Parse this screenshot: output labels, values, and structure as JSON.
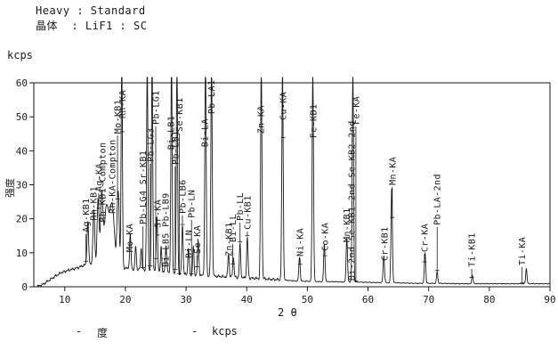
{
  "header": {
    "line1": "Heavy : Standard",
    "line2": "晶体  : LiF1 : SC"
  },
  "y_axis_unit": "kcps",
  "y_axis_label": "强度",
  "x_axis_label": "2 θ",
  "footer_legend": {
    "items": [
      {
        "marker": "-",
        "label": "度"
      },
      {
        "marker": "-",
        "label": "kcps"
      }
    ]
  },
  "colors": {
    "line": "#1a1a1a",
    "background": "#ffffff"
  },
  "chart_data": {
    "type": "line",
    "title": "Heavy : Standard / 晶体 : LiF1 : SC",
    "xlabel": "2 θ (度)",
    "ylabel": "强度 (kcps)",
    "xlim": [
      4.9,
      90
    ],
    "ylim": [
      0,
      60
    ],
    "x_ticks": [
      10,
      20,
      30,
      40,
      50,
      60,
      70,
      80,
      90
    ],
    "y_ticks": [
      0,
      10,
      20,
      30,
      40,
      50,
      60
    ],
    "grid": false,
    "clip_level": 61.6,
    "baseline": [
      [
        5.4,
        0
      ],
      [
        6.5,
        0.8
      ],
      [
        7.5,
        2.0
      ],
      [
        8.5,
        3.2
      ],
      [
        9.5,
        4.2
      ],
      [
        10.5,
        4.8
      ],
      [
        12,
        5.5
      ],
      [
        13,
        6.2
      ],
      [
        14,
        6.8
      ],
      [
        16,
        6.8
      ],
      [
        18,
        6.2
      ],
      [
        20,
        5.5
      ],
      [
        22,
        5.0
      ],
      [
        24,
        4.8
      ],
      [
        26,
        4.3
      ],
      [
        28,
        4.0
      ],
      [
        30,
        3.6
      ],
      [
        32,
        3.4
      ],
      [
        34,
        3.2
      ],
      [
        36,
        3.0
      ],
      [
        38,
        2.8
      ],
      [
        40,
        2.6
      ],
      [
        42,
        2.4
      ],
      [
        44,
        2.2
      ],
      [
        46,
        2.0
      ],
      [
        48,
        1.7
      ],
      [
        50,
        1.6
      ],
      [
        52,
        1.5
      ],
      [
        54,
        1.5
      ],
      [
        56,
        1.4
      ],
      [
        58,
        1.4
      ],
      [
        60,
        1.3
      ],
      [
        62,
        1.2
      ],
      [
        64,
        1.2
      ],
      [
        66,
        1.1
      ],
      [
        68,
        1.0
      ],
      [
        70,
        1.0
      ],
      [
        72,
        1.0
      ],
      [
        75,
        0.9
      ],
      [
        80,
        0.9
      ],
      [
        85,
        0.9
      ],
      [
        90,
        0.9
      ]
    ],
    "peaks": [
      [
        13.8,
        12.5,
        0.18
      ],
      [
        14.8,
        16,
        0.2
      ],
      [
        15.5,
        19,
        0.22
      ],
      [
        16.1,
        20,
        0.28
      ],
      [
        16.9,
        17,
        0.5
      ],
      [
        17.8,
        18,
        0.5
      ],
      [
        18.8,
        22,
        0.25
      ],
      [
        19.4,
        61.6,
        0.15
      ],
      [
        20.8,
        10,
        0.16
      ],
      [
        21.7,
        7,
        0.15
      ],
      [
        22.6,
        6.5,
        0.15
      ],
      [
        23.6,
        61.6,
        0.15
      ],
      [
        24.4,
        61.6,
        0.15
      ],
      [
        25.2,
        16,
        0.16
      ],
      [
        25.9,
        7.5,
        0.14
      ],
      [
        26.7,
        8,
        0.16
      ],
      [
        27.6,
        61.6,
        0.15
      ],
      [
        28.5,
        61.6,
        0.15
      ],
      [
        29.4,
        14.5,
        0.16
      ],
      [
        30.4,
        8,
        0.15
      ],
      [
        31.2,
        8.5,
        0.15
      ],
      [
        32.0,
        10,
        0.16
      ],
      [
        33.2,
        61.6,
        0.16
      ],
      [
        34.2,
        61.6,
        0.16
      ],
      [
        37.0,
        7,
        0.15
      ],
      [
        37.8,
        6,
        0.15
      ],
      [
        38.9,
        10,
        0.15
      ],
      [
        40.1,
        12,
        0.16
      ],
      [
        42.4,
        61.6,
        0.16
      ],
      [
        45.9,
        61.6,
        0.16
      ],
      [
        48.7,
        7,
        0.16
      ],
      [
        50.9,
        61.6,
        0.16
      ],
      [
        52.8,
        11,
        0.16
      ],
      [
        56.5,
        13,
        0.16
      ],
      [
        57.5,
        61.6,
        0.16
      ],
      [
        62.6,
        8,
        0.16
      ],
      [
        63.9,
        28,
        0.16
      ],
      [
        69.4,
        9,
        0.16
      ],
      [
        71.4,
        3.5,
        0.15
      ],
      [
        77.2,
        2.5,
        0.15
      ],
      [
        86.1,
        4.5,
        0.15
      ]
    ],
    "peak_labels": [
      [
        13.5,
        16,
        "Ag-KB1"
      ],
      [
        14.7,
        19.5,
        "Rh-KB1"
      ],
      [
        15.6,
        28,
        "Ag-KA"
      ],
      [
        16.2,
        19,
        "Rh-KB1-Compton"
      ],
      [
        17.8,
        21.5,
        "Rh-KA-Compton"
      ],
      [
        18.7,
        45,
        "Mo-KB1"
      ],
      [
        19.5,
        49.5,
        "Rh-KA"
      ],
      [
        20.7,
        10.2,
        "Mo-KA"
      ],
      [
        22.9,
        18.3,
        "Pb-LG4 Sr-KB1"
      ],
      [
        24.1,
        36.7,
        "Pb-LG3"
      ],
      [
        25.0,
        47.7,
        "Pb-LG1"
      ],
      [
        25.3,
        17.3,
        "Sr-KA"
      ],
      [
        26.6,
        5.8,
        "Bi-LB5 Pb-LB9"
      ],
      [
        27.5,
        40.3,
        "Bi-LB1"
      ],
      [
        28.2,
        35.9,
        "Pb-LB1"
      ],
      [
        28.9,
        45.6,
        "Se-KB1"
      ],
      [
        29.4,
        21.5,
        "Pb-LB6"
      ],
      [
        30.4,
        8.4,
        "Bi-LN"
      ],
      [
        30.9,
        20.2,
        "Pb-LN"
      ],
      [
        31.8,
        9.7,
        "Se-KA"
      ],
      [
        33.1,
        41.1,
        "Bi-LA"
      ],
      [
        34.2,
        50.8,
        "Pb-LA1"
      ],
      [
        37.0,
        8.9,
        "Zn-KB1"
      ],
      [
        37.7,
        13.1,
        "Bi-LL"
      ],
      [
        38.9,
        19.4,
        "Pb-LL"
      ],
      [
        40.1,
        16.8,
        "Cu-KB1"
      ],
      [
        42.3,
        45,
        "Zn-KA"
      ],
      [
        46.0,
        49,
        "Cu-KA"
      ],
      [
        48.8,
        8.9,
        "Ni-KA"
      ],
      [
        51.0,
        43.7,
        "Fe-KB1"
      ],
      [
        52.9,
        10.5,
        "Co-KA"
      ],
      [
        56.5,
        13.1,
        "Mn-KB1"
      ],
      [
        57.3,
        1.8,
        "Bi-2nd Se-KB1-2nd Se-KB2-2nd"
      ],
      [
        58.0,
        47.7,
        "Fe-KA"
      ],
      [
        62.7,
        7.6,
        "Cr-KB1"
      ],
      [
        64.0,
        29.9,
        "Mn-KA"
      ],
      [
        69.3,
        10.2,
        "Cr-KA"
      ],
      [
        71.4,
        18.1,
        "Pb-LA-2nd"
      ],
      [
        77.1,
        5.8,
        "Ti-KB1"
      ],
      [
        85.4,
        6.3,
        "Ti-KA"
      ]
    ]
  }
}
